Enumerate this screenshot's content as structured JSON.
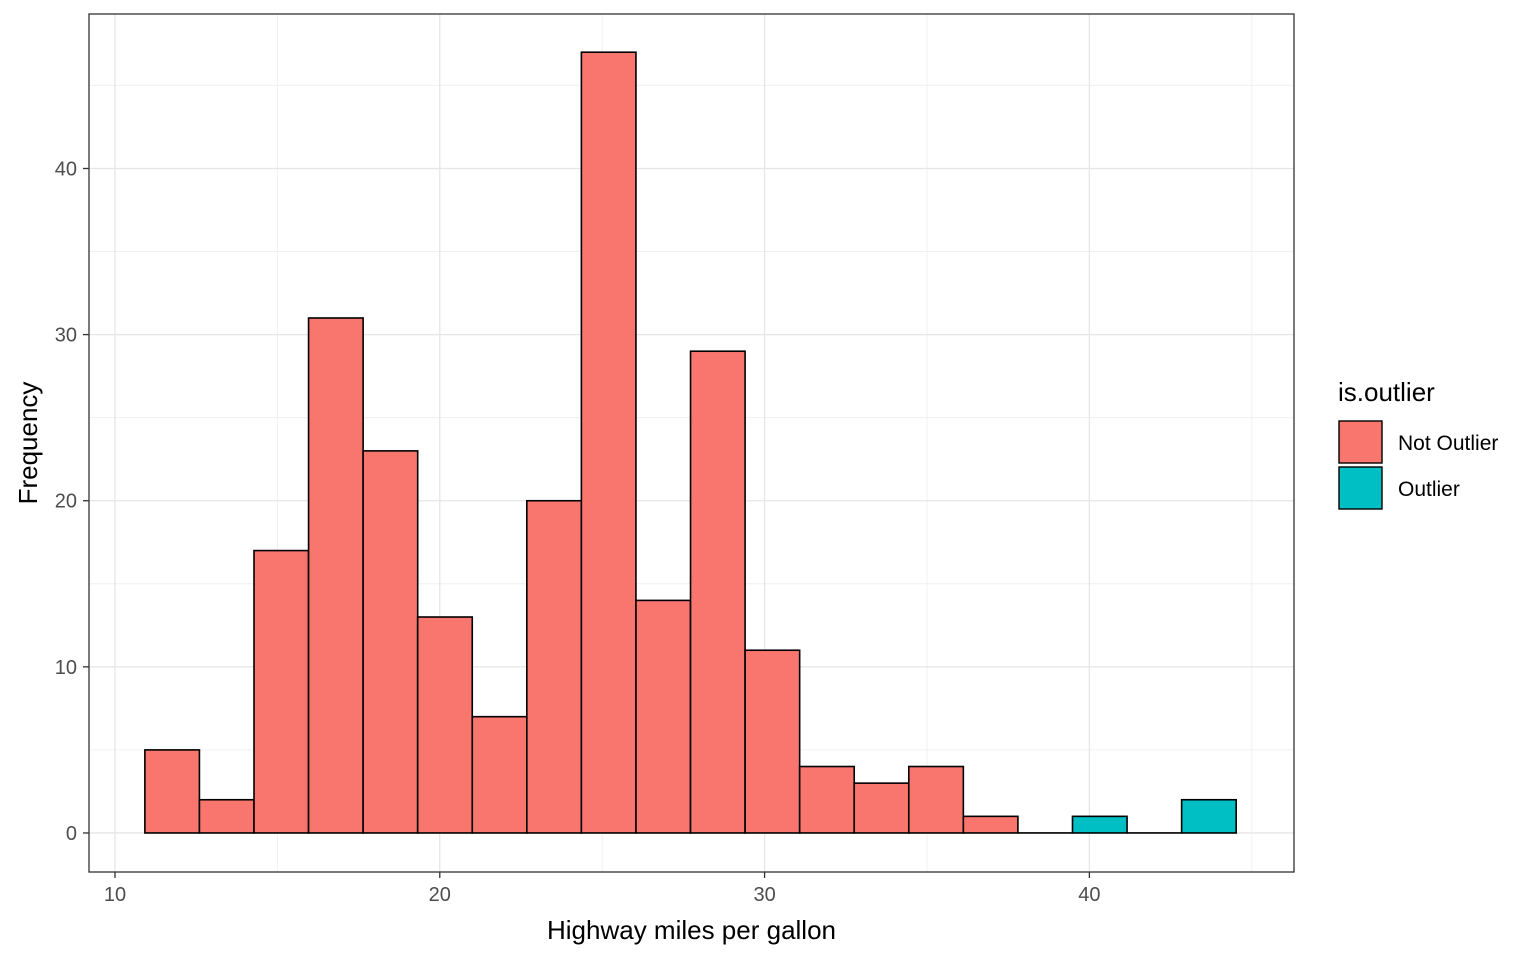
{
  "chart_data": {
    "type": "bar",
    "subtype": "histogram",
    "title": "",
    "xlabel": "Highway miles per gallon",
    "ylabel": "Frequency",
    "xlim": [
      9.2,
      46.3
    ],
    "ylim": [
      -2.35,
      49.3
    ],
    "x_ticks": [
      10,
      20,
      30,
      40
    ],
    "y_ticks": [
      0,
      10,
      20,
      30,
      40
    ],
    "grid": true,
    "legend": {
      "title": "is.outlier",
      "position": "right",
      "entries": [
        {
          "label": "Not Outlier",
          "color": "#F8766D"
        },
        {
          "label": "Outlier",
          "color": "#00BFC4"
        }
      ]
    },
    "bin_width": 1.68,
    "bins": [
      {
        "x_start": 10.92,
        "x_end": 12.6,
        "count": 5,
        "group": "Not Outlier"
      },
      {
        "x_start": 12.6,
        "x_end": 14.28,
        "count": 2,
        "group": "Not Outlier"
      },
      {
        "x_start": 14.28,
        "x_end": 15.96,
        "count": 17,
        "group": "Not Outlier"
      },
      {
        "x_start": 15.96,
        "x_end": 17.64,
        "count": 31,
        "group": "Not Outlier"
      },
      {
        "x_start": 17.64,
        "x_end": 19.32,
        "count": 23,
        "group": "Not Outlier"
      },
      {
        "x_start": 19.32,
        "x_end": 21.0,
        "count": 13,
        "group": "Not Outlier"
      },
      {
        "x_start": 21.0,
        "x_end": 22.68,
        "count": 7,
        "group": "Not Outlier"
      },
      {
        "x_start": 22.68,
        "x_end": 24.36,
        "count": 20,
        "group": "Not Outlier"
      },
      {
        "x_start": 24.36,
        "x_end": 26.04,
        "count": 47,
        "group": "Not Outlier"
      },
      {
        "x_start": 26.04,
        "x_end": 27.72,
        "count": 14,
        "group": "Not Outlier"
      },
      {
        "x_start": 27.72,
        "x_end": 29.4,
        "count": 29,
        "group": "Not Outlier"
      },
      {
        "x_start": 29.4,
        "x_end": 31.08,
        "count": 11,
        "group": "Not Outlier"
      },
      {
        "x_start": 31.08,
        "x_end": 32.76,
        "count": 4,
        "group": "Not Outlier"
      },
      {
        "x_start": 32.76,
        "x_end": 34.44,
        "count": 3,
        "group": "Not Outlier"
      },
      {
        "x_start": 34.44,
        "x_end": 36.12,
        "count": 4,
        "group": "Not Outlier"
      },
      {
        "x_start": 36.12,
        "x_end": 37.8,
        "count": 1,
        "group": "Not Outlier"
      },
      {
        "x_start": 37.8,
        "x_end": 39.48,
        "count": 0,
        "group": "Not Outlier"
      },
      {
        "x_start": 39.48,
        "x_end": 41.16,
        "count": 1,
        "group": "Outlier"
      },
      {
        "x_start": 41.16,
        "x_end": 42.84,
        "count": 0,
        "group": "Outlier"
      },
      {
        "x_start": 42.84,
        "x_end": 44.52,
        "count": 2,
        "group": "Outlier"
      }
    ]
  }
}
